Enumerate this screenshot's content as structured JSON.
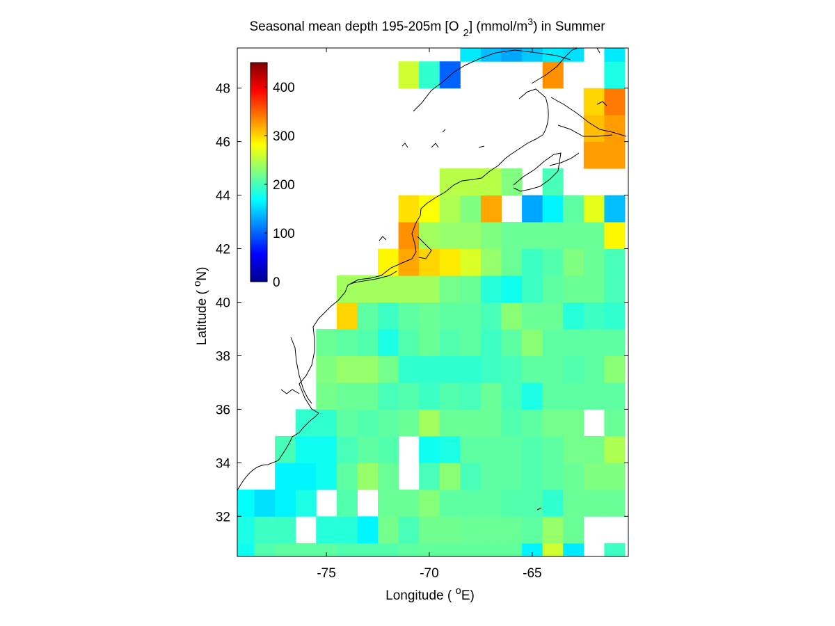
{
  "chart_data": {
    "type": "heatmap",
    "title": {
      "prefix": "Seasonal mean depth 195-205m [O",
      "sub": "2",
      "middle": "] (mmol/m",
      "sup": "3",
      "suffix": ") in  Summer"
    },
    "xlabel": {
      "prefix": "Longitude ( ",
      "sup": "o",
      "suffix": "E)"
    },
    "ylabel": {
      "prefix": "Latitude ( ",
      "sup": "o",
      "suffix": "N)"
    },
    "xlim": [
      -79.33,
      -60.33
    ],
    "ylim": [
      30.5,
      49.5
    ],
    "x_ticks": [
      -75,
      -70,
      -65
    ],
    "x_tick_labels": [
      "-75",
      "-70",
      "-65"
    ],
    "y_ticks": [
      32,
      34,
      36,
      38,
      40,
      42,
      44,
      46,
      48
    ],
    "y_tick_labels": [
      "32",
      "34",
      "36",
      "38",
      "40",
      "42",
      "44",
      "46",
      "48"
    ],
    "colorbar": {
      "colormap": "jet",
      "range": [
        0,
        450
      ],
      "ticks": [
        0,
        100,
        200,
        300,
        400
      ],
      "tick_labels": [
        "0",
        "100",
        "200",
        "300",
        "400"
      ],
      "placement": "top-left inside axes"
    },
    "grid": false,
    "cell_size_degrees": 1,
    "cells": [
      [
        -79,
        30.5,
        175
      ],
      [
        -78,
        30.5,
        205
      ],
      [
        -77,
        30.5,
        210
      ],
      [
        -76,
        30.5,
        210
      ],
      [
        -75,
        30.5,
        210
      ],
      [
        -74,
        30.5,
        205
      ],
      [
        -73,
        30.5,
        205
      ],
      [
        -72,
        30.5,
        205
      ],
      [
        -71,
        30.5,
        210
      ],
      [
        -70,
        30.5,
        212
      ],
      [
        -69,
        30.5,
        212
      ],
      [
        -68,
        30.5,
        212
      ],
      [
        -67,
        30.5,
        212
      ],
      [
        -66,
        30.5,
        212
      ],
      [
        -65,
        30.5,
        165
      ],
      [
        -64,
        30.5,
        260
      ],
      [
        -63,
        30.5,
        160
      ],
      [
        -61,
        30.5,
        195
      ],
      [
        -79,
        31.5,
        180
      ],
      [
        -78,
        31.5,
        195
      ],
      [
        -77,
        31.5,
        195
      ],
      [
        -75,
        31.5,
        185
      ],
      [
        -74,
        31.5,
        185
      ],
      [
        -73,
        31.5,
        165
      ],
      [
        -72,
        31.5,
        220
      ],
      [
        -71,
        31.5,
        200
      ],
      [
        -70,
        31.5,
        218
      ],
      [
        -69,
        31.5,
        218
      ],
      [
        -68,
        31.5,
        215
      ],
      [
        -67,
        31.5,
        215
      ],
      [
        -66,
        31.5,
        215
      ],
      [
        -65,
        31.5,
        210
      ],
      [
        -64,
        31.5,
        235
      ],
      [
        -63,
        31.5,
        215
      ],
      [
        -79,
        32.5,
        170
      ],
      [
        -78,
        32.5,
        155
      ],
      [
        -77,
        32.5,
        165
      ],
      [
        -76,
        32.5,
        180
      ],
      [
        -74,
        32.5,
        205
      ],
      [
        -72,
        32.5,
        215
      ],
      [
        -71,
        32.5,
        215
      ],
      [
        -70,
        32.5,
        228
      ],
      [
        -69,
        32.5,
        210
      ],
      [
        -68,
        32.5,
        210
      ],
      [
        -67,
        32.5,
        210
      ],
      [
        -66,
        32.5,
        205
      ],
      [
        -65,
        32.5,
        205
      ],
      [
        -64,
        32.5,
        190
      ],
      [
        -63,
        32.5,
        215
      ],
      [
        -62,
        32.5,
        215
      ],
      [
        -61,
        32.5,
        215
      ],
      [
        -77,
        33.5,
        165
      ],
      [
        -76,
        33.5,
        165
      ],
      [
        -75,
        33.5,
        175
      ],
      [
        -74,
        33.5,
        210
      ],
      [
        -73,
        33.5,
        235
      ],
      [
        -72,
        33.5,
        215
      ],
      [
        -70,
        33.5,
        200
      ],
      [
        -69,
        33.5,
        230
      ],
      [
        -68,
        33.5,
        200
      ],
      [
        -67,
        33.5,
        210
      ],
      [
        -66,
        33.5,
        210
      ],
      [
        -65,
        33.5,
        205
      ],
      [
        -64,
        33.5,
        210
      ],
      [
        -63,
        33.5,
        215
      ],
      [
        -62,
        33.5,
        225
      ],
      [
        -61,
        33.5,
        225
      ],
      [
        -77,
        34.5,
        200
      ],
      [
        -76,
        34.5,
        175
      ],
      [
        -75,
        34.5,
        175
      ],
      [
        -74,
        34.5,
        200
      ],
      [
        -73,
        34.5,
        210
      ],
      [
        -72,
        34.5,
        205
      ],
      [
        -70,
        34.5,
        175
      ],
      [
        -69,
        34.5,
        180
      ],
      [
        -68,
        34.5,
        210
      ],
      [
        -67,
        34.5,
        210
      ],
      [
        -66,
        34.5,
        210
      ],
      [
        -65,
        34.5,
        205
      ],
      [
        -64,
        34.5,
        210
      ],
      [
        -63,
        34.5,
        220
      ],
      [
        -62,
        34.5,
        220
      ],
      [
        -61,
        34.5,
        245
      ],
      [
        -76,
        35.5,
        190
      ],
      [
        -75,
        35.5,
        190
      ],
      [
        -74,
        35.5,
        210
      ],
      [
        -73,
        35.5,
        205
      ],
      [
        -72,
        35.5,
        210
      ],
      [
        -71,
        35.5,
        215
      ],
      [
        -70,
        35.5,
        240
      ],
      [
        -69,
        35.5,
        215
      ],
      [
        -68,
        35.5,
        215
      ],
      [
        -67,
        35.5,
        215
      ],
      [
        -66,
        35.5,
        205
      ],
      [
        -65,
        35.5,
        210
      ],
      [
        -64,
        35.5,
        220
      ],
      [
        -63,
        35.5,
        220
      ],
      [
        -61,
        35.5,
        215
      ],
      [
        -75,
        36.5,
        220
      ],
      [
        -74,
        36.5,
        215
      ],
      [
        -73,
        36.5,
        215
      ],
      [
        -72,
        36.5,
        200
      ],
      [
        -71,
        36.5,
        205
      ],
      [
        -70,
        36.5,
        195
      ],
      [
        -69,
        36.5,
        205
      ],
      [
        -68,
        36.5,
        200
      ],
      [
        -67,
        36.5,
        215
      ],
      [
        -66,
        36.5,
        200
      ],
      [
        -65,
        36.5,
        180
      ],
      [
        -64,
        36.5,
        210
      ],
      [
        -63,
        36.5,
        210
      ],
      [
        -62,
        36.5,
        210
      ],
      [
        -61,
        36.5,
        210
      ],
      [
        -75,
        37.5,
        225
      ],
      [
        -74,
        37.5,
        235
      ],
      [
        -73,
        37.5,
        235
      ],
      [
        -72,
        37.5,
        220
      ],
      [
        -71,
        37.5,
        190
      ],
      [
        -70,
        37.5,
        190
      ],
      [
        -69,
        37.5,
        190
      ],
      [
        -68,
        37.5,
        190
      ],
      [
        -67,
        37.5,
        195
      ],
      [
        -66,
        37.5,
        200
      ],
      [
        -65,
        37.5,
        210
      ],
      [
        -64,
        37.5,
        210
      ],
      [
        -63,
        37.5,
        205
      ],
      [
        -62,
        37.5,
        210
      ],
      [
        -61,
        37.5,
        230
      ],
      [
        -75,
        38.5,
        215
      ],
      [
        -74,
        38.5,
        210
      ],
      [
        -73,
        38.5,
        205
      ],
      [
        -72,
        38.5,
        180
      ],
      [
        -71,
        38.5,
        205
      ],
      [
        -70,
        38.5,
        215
      ],
      [
        -69,
        38.5,
        205
      ],
      [
        -68,
        38.5,
        210
      ],
      [
        -67,
        38.5,
        195
      ],
      [
        -66,
        38.5,
        210
      ],
      [
        -65,
        38.5,
        230
      ],
      [
        -64,
        38.5,
        210
      ],
      [
        -63,
        38.5,
        210
      ],
      [
        -62,
        38.5,
        210
      ],
      [
        -61,
        38.5,
        210
      ],
      [
        -74,
        39.5,
        300
      ],
      [
        -73,
        39.5,
        210
      ],
      [
        -72,
        39.5,
        195
      ],
      [
        -71,
        39.5,
        210
      ],
      [
        -70,
        39.5,
        215
      ],
      [
        -69,
        39.5,
        210
      ],
      [
        -68,
        39.5,
        210
      ],
      [
        -67,
        39.5,
        200
      ],
      [
        -66,
        39.5,
        230
      ],
      [
        -65,
        39.5,
        215
      ],
      [
        -64,
        39.5,
        215
      ],
      [
        -63,
        39.5,
        185
      ],
      [
        -62,
        39.5,
        195
      ],
      [
        -61,
        39.5,
        190
      ],
      [
        -74,
        40.5,
        240
      ],
      [
        -73,
        40.5,
        240
      ],
      [
        -72,
        40.5,
        240
      ],
      [
        -71,
        40.5,
        240
      ],
      [
        -70,
        40.5,
        240
      ],
      [
        -69,
        40.5,
        220
      ],
      [
        -68,
        40.5,
        215
      ],
      [
        -67,
        40.5,
        185
      ],
      [
        -66,
        40.5,
        175
      ],
      [
        -65,
        40.5,
        195
      ],
      [
        -64,
        40.5,
        210
      ],
      [
        -63,
        40.5,
        215
      ],
      [
        -62,
        40.5,
        215
      ],
      [
        -61,
        40.5,
        200
      ],
      [
        -72,
        41.5,
        285
      ],
      [
        -71,
        41.5,
        320
      ],
      [
        -70,
        41.5,
        300
      ],
      [
        -69,
        41.5,
        290
      ],
      [
        -68,
        41.5,
        265
      ],
      [
        -67,
        41.5,
        235
      ],
      [
        -66,
        41.5,
        215
      ],
      [
        -65,
        41.5,
        195
      ],
      [
        -64,
        41.5,
        205
      ],
      [
        -63,
        41.5,
        225
      ],
      [
        -62,
        41.5,
        215
      ],
      [
        -61,
        41.5,
        200
      ],
      [
        -71,
        42.5,
        330
      ],
      [
        -70,
        42.5,
        240
      ],
      [
        -69,
        42.5,
        235
      ],
      [
        -68,
        42.5,
        235
      ],
      [
        -67,
        42.5,
        225
      ],
      [
        -66,
        42.5,
        215
      ],
      [
        -65,
        42.5,
        215
      ],
      [
        -64,
        42.5,
        215
      ],
      [
        -63,
        42.5,
        215
      ],
      [
        -62,
        42.5,
        215
      ],
      [
        -61,
        42.5,
        285
      ],
      [
        -71,
        43.5,
        295
      ],
      [
        -70,
        43.5,
        280
      ],
      [
        -69,
        43.5,
        245
      ],
      [
        -68,
        43.5,
        225
      ],
      [
        -67,
        43.5,
        320
      ],
      [
        -65,
        43.5,
        130
      ],
      [
        -64,
        43.5,
        165
      ],
      [
        -63,
        43.5,
        210
      ],
      [
        -62,
        43.5,
        270
      ],
      [
        -61,
        43.5,
        140
      ],
      [
        -69,
        44.5,
        250
      ],
      [
        -68,
        44.5,
        250
      ],
      [
        -67,
        44.5,
        250
      ],
      [
        -66,
        44.5,
        225
      ],
      [
        -64,
        44.5,
        200
      ],
      [
        -62,
        45.5,
        325
      ],
      [
        -61,
        45.5,
        325
      ],
      [
        -62,
        46.5,
        310
      ],
      [
        -61,
        46.5,
        325
      ],
      [
        -62,
        47.5,
        300
      ],
      [
        -61,
        47.5,
        340
      ],
      [
        -71,
        48.5,
        260
      ],
      [
        -70,
        48.5,
        190
      ],
      [
        -69,
        48.5,
        100
      ],
      [
        -64,
        48.5,
        330
      ],
      [
        -61,
        48.5,
        180
      ],
      [
        -68,
        49.5,
        160
      ],
      [
        -67,
        49.5,
        140
      ],
      [
        -66,
        49.5,
        130
      ],
      [
        -65,
        49.5,
        145
      ],
      [
        -64,
        49.5,
        160
      ],
      [
        -63,
        49.5,
        155
      ],
      [
        -61,
        49.5,
        160
      ]
    ]
  }
}
